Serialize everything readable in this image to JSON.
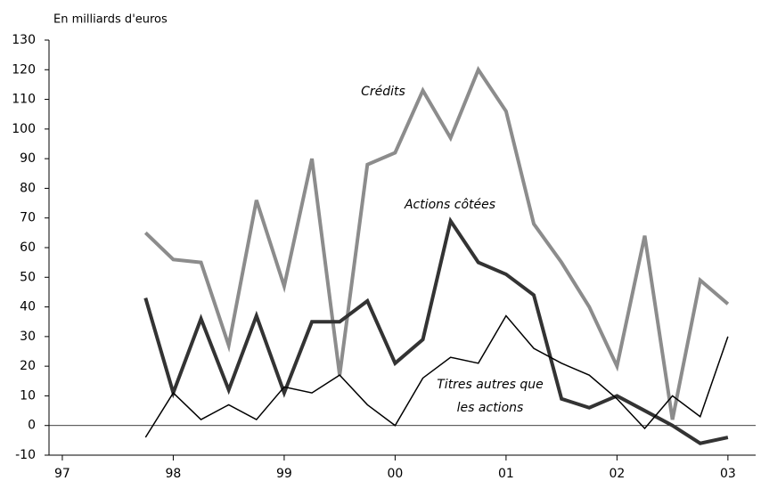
{
  "chart_data": {
    "type": "line",
    "y_axis_label": "En milliards d'euros",
    "x": [
      1997.75,
      1998.0,
      1998.25,
      1998.5,
      1998.75,
      1999.0,
      1999.25,
      1999.5,
      1999.75,
      2000.0,
      2000.25,
      2000.5,
      2000.75,
      2001.0,
      2001.25,
      2001.5,
      2001.75,
      2002.0,
      2002.25,
      2002.5,
      2002.75,
      2003.0
    ],
    "series": [
      {
        "name": "Crédits",
        "color": "#8c8c8c",
        "values": [
          65,
          56,
          55,
          27,
          76,
          47,
          90,
          17,
          88,
          92,
          113,
          97,
          120,
          106,
          68,
          55,
          40,
          20,
          64,
          2,
          49,
          41
        ]
      },
      {
        "name": "Actions côtées",
        "color": "#333333",
        "values": [
          43,
          11,
          36,
          12,
          37,
          11,
          35,
          35,
          42,
          21,
          29,
          69,
          55,
          51,
          44,
          9,
          6,
          10,
          5,
          0,
          -6,
          -4
        ]
      },
      {
        "name": "Titres autres que les actions",
        "color": "#000000",
        "values": [
          -4,
          11,
          2,
          7,
          2,
          13,
          11,
          17,
          7,
          0,
          16,
          23,
          21,
          37,
          26,
          21,
          17,
          9,
          -1,
          10,
          3,
          30
        ]
      }
    ],
    "xlim": [
      1996.88,
      2003.25
    ],
    "xticks": [
      {
        "value": 1997,
        "label": "97"
      },
      {
        "value": 1998,
        "label": "98"
      },
      {
        "value": 1999,
        "label": "99"
      },
      {
        "value": 2000,
        "label": "00"
      },
      {
        "value": 2001,
        "label": "01"
      },
      {
        "value": 2002,
        "label": "02"
      },
      {
        "value": 2003,
        "label": "03"
      }
    ],
    "ylim": [
      -10,
      130
    ],
    "yticks": [
      -10,
      0,
      10,
      20,
      30,
      40,
      50,
      60,
      70,
      80,
      90,
      100,
      110,
      120,
      130
    ]
  }
}
